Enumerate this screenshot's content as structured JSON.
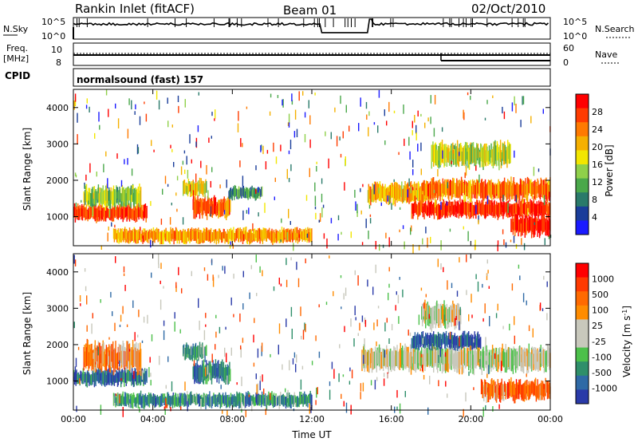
{
  "header": {
    "station": "Rankin Inlet (fitACF)",
    "beam": "Beam 01",
    "date": "02/Oct/2010"
  },
  "top_panels": {
    "nsky_label": "N.Sky",
    "nsearch_label": "N.Search",
    "nsky_ticks": [
      "10^5",
      "10^0"
    ],
    "freq_label_line1": "Freq.",
    "freq_label_line2": "[MHz]",
    "freq_ticks": [
      "10",
      "8"
    ],
    "nave_label": "Nave",
    "nave_ticks": [
      "60",
      "0"
    ],
    "cpid_label": "CPID",
    "cpid_text": "normalsound (fast) 157"
  },
  "colors": {
    "power_scale": [
      "#1a1aff",
      "#1a3d9a",
      "#2a7a6a",
      "#4aa84a",
      "#8fd04a",
      "#f2e600",
      "#f5b000",
      "#ff7a00",
      "#ff3c00",
      "#ff0000"
    ],
    "velocity_scale": [
      "#2a3aa8",
      "#2f6aa6",
      "#2f8f6a",
      "#4cc04a",
      "#c8c8bc",
      "#c8c8bc",
      "#ff8c00",
      "#ff6a00",
      "#ff3a00",
      "#ff0000"
    ]
  },
  "chart_data": [
    {
      "type": "heatmap",
      "panel": "power",
      "ylabel": "Slant Range [km]",
      "yticks": [
        1000,
        2000,
        3000,
        4000
      ],
      "ylim": [
        200,
        4500
      ],
      "xlim": [
        "00:00",
        "00:00"
      ],
      "xticks": [
        "00:00",
        "04:00",
        "08:00",
        "12:00",
        "16:00",
        "20:00",
        "00:00"
      ],
      "colorbar_label": "Power [dB]",
      "colorbar_ticks": [
        28,
        24,
        20,
        16,
        12,
        8,
        4
      ],
      "bands": [
        {
          "t0": 0.0,
          "t1": 3.7,
          "r0": 900,
          "r1": 1300,
          "level": 0.85
        },
        {
          "t0": 0.5,
          "t1": 3.4,
          "r0": 1300,
          "r1": 1800,
          "level": 0.45
        },
        {
          "t0": 6.0,
          "t1": 7.9,
          "r0": 1000,
          "r1": 1500,
          "level": 0.8
        },
        {
          "t0": 5.5,
          "t1": 6.7,
          "r0": 1600,
          "r1": 2000,
          "level": 0.55
        },
        {
          "t0": 7.8,
          "t1": 9.5,
          "r0": 1500,
          "r1": 1800,
          "level": 0.3
        },
        {
          "t0": 2.0,
          "t1": 12.0,
          "r0": 300,
          "r1": 650,
          "level": 0.7
        },
        {
          "t0": 14.8,
          "t1": 18.0,
          "r0": 1400,
          "r1": 1900,
          "level": 0.65
        },
        {
          "t0": 17.0,
          "t1": 24.0,
          "r0": 1000,
          "r1": 1400,
          "level": 0.9
        },
        {
          "t0": 17.5,
          "t1": 24.0,
          "r0": 1500,
          "r1": 2000,
          "level": 0.75
        },
        {
          "t0": 22.0,
          "t1": 24.0,
          "r0": 500,
          "r1": 1000,
          "level": 0.95
        },
        {
          "t0": 18.0,
          "t1": 22.0,
          "r0": 2400,
          "r1": 3000,
          "level": 0.5
        }
      ]
    },
    {
      "type": "heatmap",
      "panel": "velocity",
      "ylabel": "Slant Range [km]",
      "yticks": [
        1000,
        2000,
        3000,
        4000
      ],
      "ylim": [
        200,
        4500
      ],
      "xlabel": "Time UT",
      "xticks": [
        "00:00",
        "04:00",
        "08:00",
        "12:00",
        "16:00",
        "20:00",
        "00:00"
      ],
      "colorbar_label": "Velocity [m s",
      "colorbar_label_sup": "-1",
      "colorbar_label_end": "]",
      "colorbar_ticks": [
        1000,
        500,
        100,
        25,
        -25,
        -100,
        -500,
        -1000
      ],
      "bands": [
        {
          "t0": 0.0,
          "t1": 3.7,
          "r0": 900,
          "r1": 1300,
          "level": 0.15
        },
        {
          "t0": 0.5,
          "t1": 3.4,
          "r0": 1300,
          "r1": 2000,
          "level": 0.7
        },
        {
          "t0": 6.0,
          "t1": 7.9,
          "r0": 1000,
          "r1": 1500,
          "level": 0.2
        },
        {
          "t0": 5.5,
          "t1": 6.7,
          "r0": 1600,
          "r1": 2000,
          "level": 0.3
        },
        {
          "t0": 2.0,
          "t1": 12.0,
          "r0": 300,
          "r1": 650,
          "level": 0.25
        },
        {
          "t0": 14.5,
          "t1": 24.0,
          "r0": 1300,
          "r1": 1900,
          "level": 0.48
        },
        {
          "t0": 17.0,
          "t1": 20.5,
          "r0": 1900,
          "r1": 2300,
          "level": 0.1
        },
        {
          "t0": 20.5,
          "t1": 24.0,
          "r0": 500,
          "r1": 1000,
          "level": 0.75
        },
        {
          "t0": 17.5,
          "t1": 19.5,
          "r0": 2500,
          "r1": 3100,
          "level": 0.5
        }
      ]
    }
  ],
  "line_data": {
    "nsky_level": 0.7,
    "nsky_gap_hours": [
      15.0,
      24.0
    ],
    "freq_value": 10,
    "nave_high_until": 18.5
  }
}
